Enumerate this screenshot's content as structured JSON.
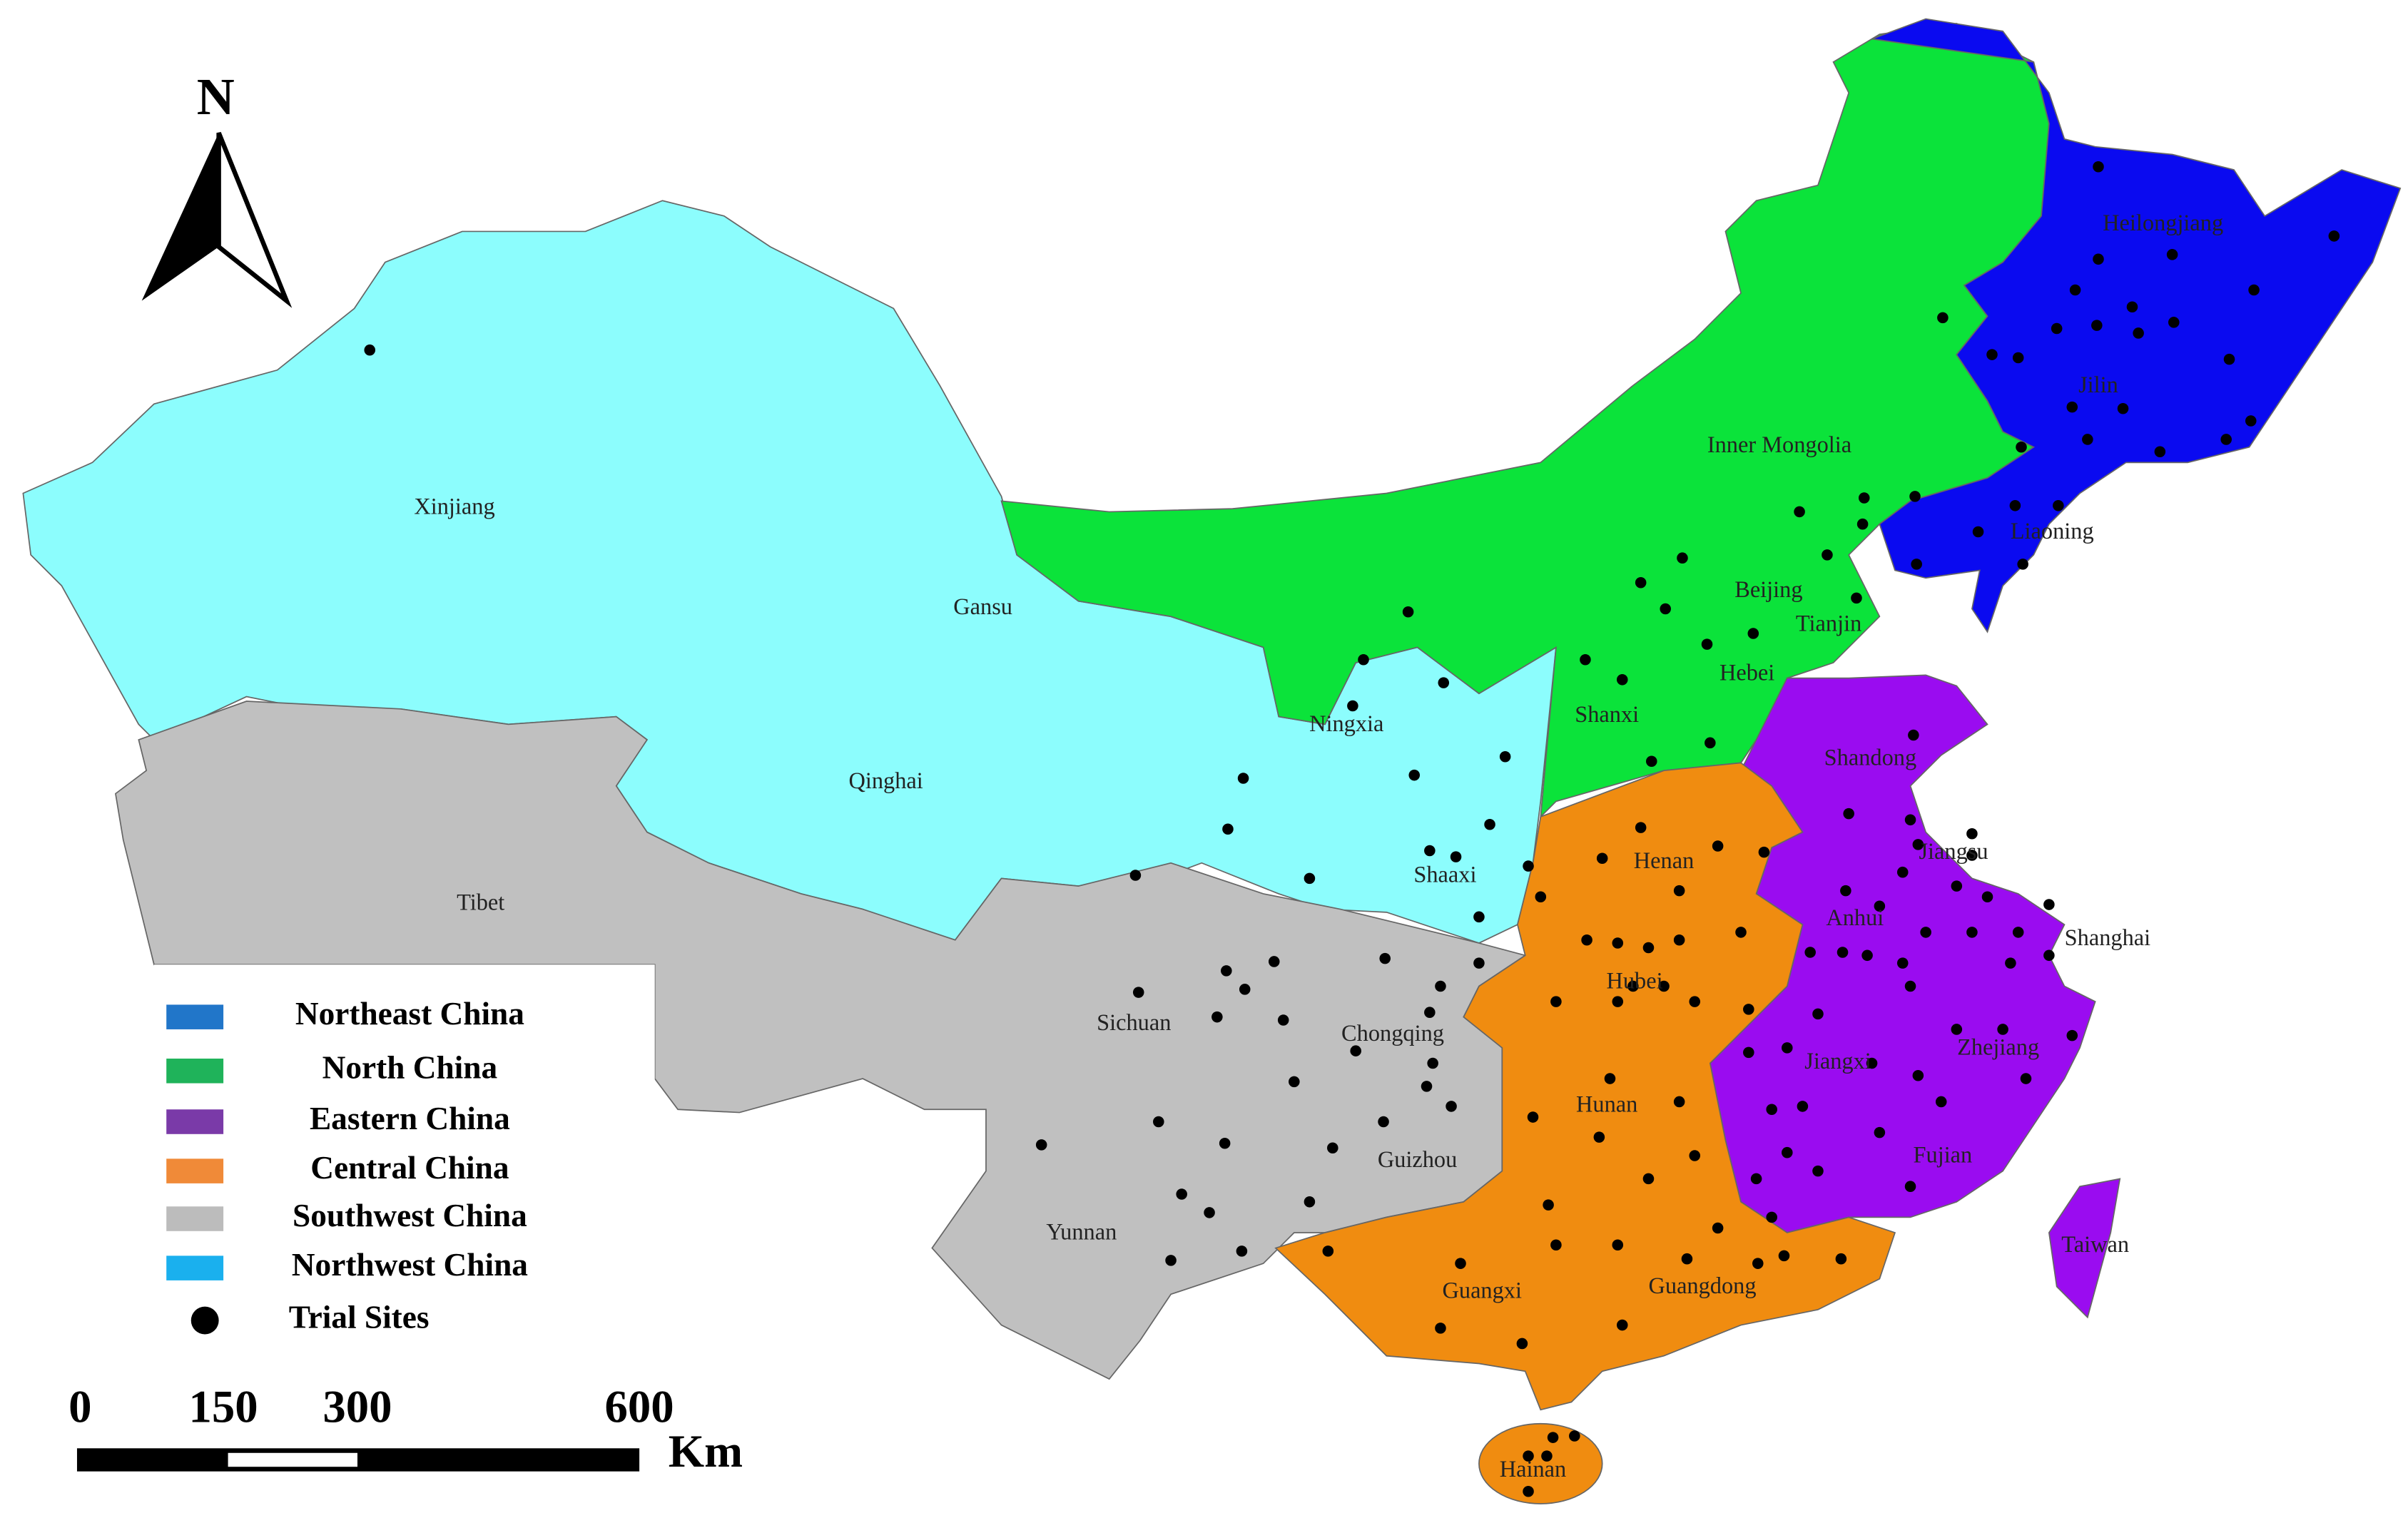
{
  "north_arrow": "N",
  "regions": [
    {
      "label": "Northeast China",
      "legend_color": "#2176c9",
      "map_color": "#0a0af0"
    },
    {
      "label": "North China",
      "legend_color": "#1fb35a",
      "map_color": "#0be33a"
    },
    {
      "label": "Eastern China",
      "legend_color": "#7a3aa8",
      "map_color": "#9a0cf0"
    },
    {
      "label": "Central China",
      "legend_color": "#f08a38",
      "map_color": "#f08c10"
    },
    {
      "label": "Southwest China",
      "legend_color": "#bcbcbc",
      "map_color": "#c0c0c0"
    },
    {
      "label": "Northwest China",
      "legend_color": "#1ab0ee",
      "map_color": "#8cfdfd"
    }
  ],
  "trial_sites": "Trial Sites",
  "provinces": [
    {
      "name": "Xinjiang"
    },
    {
      "name": "Gansu"
    },
    {
      "name": "Qinghai"
    },
    {
      "name": "Tibet"
    },
    {
      "name": "Ningxia"
    },
    {
      "name": "Shaaxi"
    },
    {
      "name": "Inner Mongolia"
    },
    {
      "name": "Heilongjiang"
    },
    {
      "name": "Jilin"
    },
    {
      "name": "Liaoning"
    },
    {
      "name": "Beijing"
    },
    {
      "name": "Tianjin"
    },
    {
      "name": "Hebei"
    },
    {
      "name": "Shanxi"
    },
    {
      "name": "Shandong"
    },
    {
      "name": "Henan"
    },
    {
      "name": "Jiangsu"
    },
    {
      "name": "Anhui"
    },
    {
      "name": "Shanghai"
    },
    {
      "name": "Hubei"
    },
    {
      "name": "Sichuan"
    },
    {
      "name": "Chongqing"
    },
    {
      "name": "Jiangxi"
    },
    {
      "name": "Zhejiang"
    },
    {
      "name": "Hunan"
    },
    {
      "name": "Guizhou"
    },
    {
      "name": "Fujian"
    },
    {
      "name": "Yunnan"
    },
    {
      "name": "Taiwan"
    },
    {
      "name": "Guangxi"
    },
    {
      "name": "Guangdong"
    },
    {
      "name": "Hainan"
    }
  ],
  "scale_bar": {
    "ticks": [
      0,
      150,
      300,
      600
    ],
    "unit": "Km"
  }
}
